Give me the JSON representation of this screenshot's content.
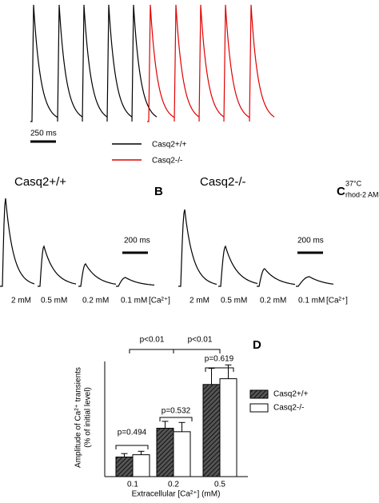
{
  "panel_a": {
    "scale_bar": "250 ms",
    "legend": [
      "Casq2+/+",
      "Casq2-/-"
    ]
  },
  "panel_b": {
    "genotype": "Casq2+/+",
    "letter": "B",
    "scale_bar": "200 ms",
    "labels": [
      "2 mM",
      "0.5 mM",
      "0.2 mM",
      "0.1 mM",
      "[Ca²⁺]"
    ]
  },
  "panel_c": {
    "genotype": "Casq2-/-",
    "letter": "C",
    "scale_bar": "200 ms",
    "labels": [
      "2 mM",
      "0.5 mM",
      "0.2 mM",
      "0.1 mM",
      "[Ca²⁺]"
    ],
    "conditions": [
      "37°C",
      "rhod-2 AM"
    ]
  },
  "chart_data": {
    "type": "bar",
    "letter": "D",
    "ylabel": [
      "Amplitude of Ca²⁺ transients",
      "(% of initial level)"
    ],
    "xlabel": "Extracellular [Ca²⁺] (mM)",
    "categories": [
      "0.1",
      "0.2",
      "0.5"
    ],
    "series": [
      {
        "name": "Casq2+/+",
        "color": "#333333",
        "hatch": true,
        "values": [
          8.5,
          21,
          40
        ],
        "errors": [
          1.5,
          3,
          7
        ]
      },
      {
        "name": "Casq2-/-",
        "color": "#ffffff",
        "hatch": false,
        "values": [
          9.5,
          19.5,
          42.5
        ],
        "errors": [
          1.5,
          4,
          6
        ]
      }
    ],
    "ylim": [
      0,
      50
    ],
    "annotations": [
      "p<0.01",
      "p<0.01",
      "p=0.619",
      "p=0.532",
      "p=0.494"
    ]
  }
}
